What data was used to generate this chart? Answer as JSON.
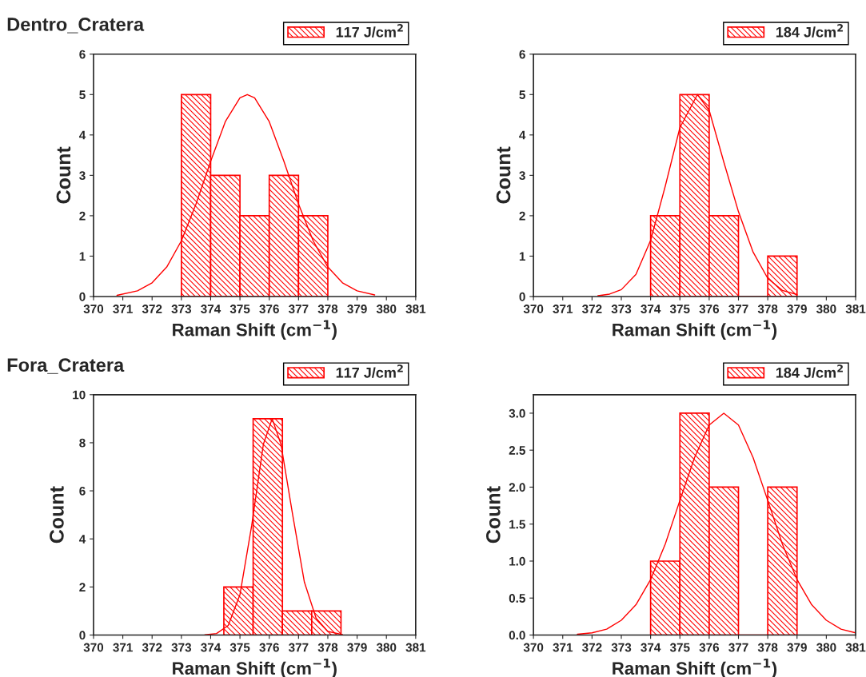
{
  "chart_data": [
    {
      "type": "histogram",
      "title": "Dentro_Cratera",
      "xlabel": "Raman Shift (cm$^{−1}$)",
      "ylabel": "Count",
      "legend": "top right",
      "xlim": [
        370,
        381
      ],
      "ylim": [
        0,
        6
      ],
      "xticks": [
        370,
        371,
        372,
        373,
        374,
        375,
        376,
        377,
        378,
        379,
        380,
        381
      ],
      "yticks": [
        0,
        1,
        2,
        3,
        4,
        5,
        6
      ],
      "series": [
        {
          "name": "117 J/cm$^{2}$",
          "type": "histogram",
          "color": "#ff0000",
          "bins": [
            373,
            374,
            375,
            376,
            377,
            378
          ],
          "values": [
            5,
            3,
            2,
            3,
            2
          ]
        },
        {
          "type": "line",
          "color": "#ff0000",
          "x": [
            370.8,
            371.5,
            372,
            372.5,
            373,
            373.5,
            374,
            374.5,
            375,
            375.25,
            375.5,
            376,
            376.5,
            377,
            377.5,
            378,
            378.5,
            379,
            379.6
          ],
          "values": [
            0.03,
            0.14,
            0.34,
            0.73,
            1.38,
            2.29,
            3.35,
            4.33,
            4.92,
            5,
            4.92,
            4.33,
            3.35,
            2.29,
            1.38,
            0.73,
            0.34,
            0.14,
            0.04
          ]
        }
      ]
    },
    {
      "type": "histogram",
      "xlabel": "Raman Shift (cm$^{−1}$)",
      "ylabel": "Count",
      "legend": "top right",
      "xlim": [
        370,
        381
      ],
      "ylim": [
        0,
        6
      ],
      "xticks": [
        370,
        371,
        372,
        373,
        374,
        375,
        376,
        377,
        378,
        379,
        380,
        381
      ],
      "yticks": [
        0,
        1,
        2,
        3,
        4,
        5,
        6
      ],
      "series": [
        {
          "name": "184 J/cm$^{2}$",
          "type": "histogram",
          "color": "#ff0000",
          "bins": [
            374,
            375,
            376,
            377,
            378,
            379
          ],
          "values": [
            2,
            5,
            2,
            0,
            1
          ]
        },
        {
          "type": "line",
          "color": "#ff0000",
          "x": [
            372.2,
            372.6,
            373,
            373.5,
            374,
            374.5,
            375,
            375.6,
            376,
            376.5,
            377,
            377.5,
            378,
            378.5,
            379
          ],
          "values": [
            0.02,
            0.06,
            0.17,
            0.55,
            1.39,
            2.73,
            4.18,
            5,
            4.61,
            3.33,
            2.1,
            1.1,
            0.45,
            0.15,
            0.05
          ]
        }
      ]
    },
    {
      "type": "histogram",
      "title": "Fora_Cratera",
      "xlabel": "Raman Shift (cm$^{−1}$)",
      "ylabel": "Count",
      "legend": "top right",
      "xlim": [
        370,
        381
      ],
      "ylim": [
        0,
        10
      ],
      "xticks": [
        370,
        371,
        372,
        373,
        374,
        375,
        376,
        377,
        378,
        379,
        380,
        381
      ],
      "yticks": [
        0,
        2,
        4,
        6,
        8,
        10
      ],
      "series": [
        {
          "name": "117 J/cm$^{2}$",
          "type": "histogram",
          "color": "#ff0000",
          "bins": [
            374.45,
            375.45,
            376.45,
            377.45,
            378.45
          ],
          "values": [
            2,
            9,
            1,
            1
          ]
        },
        {
          "type": "line",
          "color": "#ff0000",
          "x": [
            373.8,
            374.2,
            374.6,
            375,
            375.4,
            375.8,
            376.1,
            376.4,
            376.8,
            377.2,
            377.6,
            378,
            378.5
          ],
          "values": [
            0.01,
            0.06,
            0.4,
            1.68,
            4.55,
            7.94,
            9,
            7.94,
            5.0,
            2.2,
            0.7,
            0.15,
            0.02
          ]
        }
      ]
    },
    {
      "type": "histogram",
      "xlabel": "Raman Shift (cm$^{−1}$)",
      "ylabel": "Count",
      "legend": "top right",
      "xlim": [
        370,
        381
      ],
      "ylim": [
        0,
        3.25
      ],
      "xticks": [
        370,
        371,
        372,
        373,
        374,
        375,
        376,
        377,
        378,
        379,
        380,
        381
      ],
      "yticks": [
        {
          "value": 0,
          "label": "0.0"
        },
        0.5,
        {
          "value": 1,
          "label": "1.0"
        },
        1.5,
        {
          "value": 2,
          "label": "2.0"
        },
        2.5,
        {
          "value": 3,
          "label": "3.0"
        }
      ],
      "series": [
        {
          "name": "184 J/cm$^{2}$",
          "type": "histogram",
          "color": "#ff0000",
          "bins": [
            374,
            375,
            376,
            377,
            378,
            379
          ],
          "values": [
            1,
            3,
            2,
            0,
            2
          ]
        },
        {
          "type": "line",
          "color": "#ff0000",
          "x": [
            371.5,
            372,
            372.5,
            373,
            373.5,
            374,
            374.5,
            375,
            375.5,
            376,
            376.5,
            377,
            377.5,
            378,
            378.5,
            379,
            379.5,
            380,
            380.5,
            381
          ],
          "values": [
            0.01,
            0.03,
            0.08,
            0.2,
            0.41,
            0.75,
            1.23,
            1.82,
            2.4,
            2.84,
            3,
            2.84,
            2.4,
            1.82,
            1.23,
            0.75,
            0.41,
            0.2,
            0.08,
            0.03
          ]
        }
      ]
    }
  ]
}
